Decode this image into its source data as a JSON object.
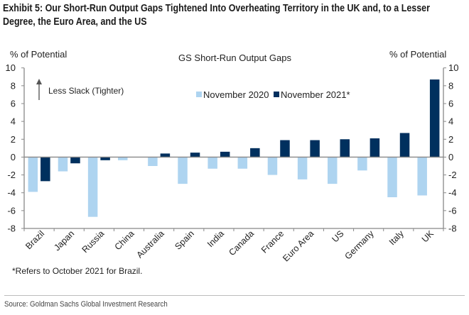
{
  "title_lines": [
    "Exhibit 5: Our Short-Run Output Gaps Tightened Into Overheating Territory in the UK and, to a Lesser",
    "Degree, the Euro Area, and the US"
  ],
  "footnote": "*Refers to October 2021 for Brazil.",
  "source": "Source: Goldman Sachs Global Investment Research",
  "colors": {
    "nov2020": "#aed4f0",
    "nov2021": "#00305e",
    "axis": "#888888"
  },
  "chart_data": {
    "type": "bar",
    "title": "GS Short-Run Output Gaps",
    "ylabel_left": "% of Potential",
    "ylabel_right": "% of Potential",
    "xlabel": "",
    "ylim": [
      -8,
      10
    ],
    "yticks": [
      10,
      8,
      6,
      4,
      2,
      0,
      -2,
      -4,
      -6,
      -8
    ],
    "annotation": "Less Slack (Tighter)",
    "legend_position": "top-center",
    "categories": [
      "Brazil",
      "Japan",
      "Russia",
      "China",
      "Australia",
      "Spain",
      "India",
      "Canada",
      "France",
      "Euro Area",
      "US",
      "Germany",
      "Italy",
      "UK"
    ],
    "series": [
      {
        "name": "November 2020",
        "values": [
          -3.9,
          -1.6,
          -6.7,
          -0.35,
          -1.0,
          -3.0,
          -1.3,
          -1.3,
          -2.0,
          -2.5,
          -3.0,
          -1.5,
          -4.5,
          -4.3
        ]
      },
      {
        "name": "November 2021*",
        "values": [
          -2.7,
          -0.7,
          -0.35,
          0.0,
          0.4,
          0.5,
          0.6,
          1.0,
          1.9,
          1.9,
          2.0,
          2.1,
          2.7,
          8.7
        ]
      }
    ]
  }
}
